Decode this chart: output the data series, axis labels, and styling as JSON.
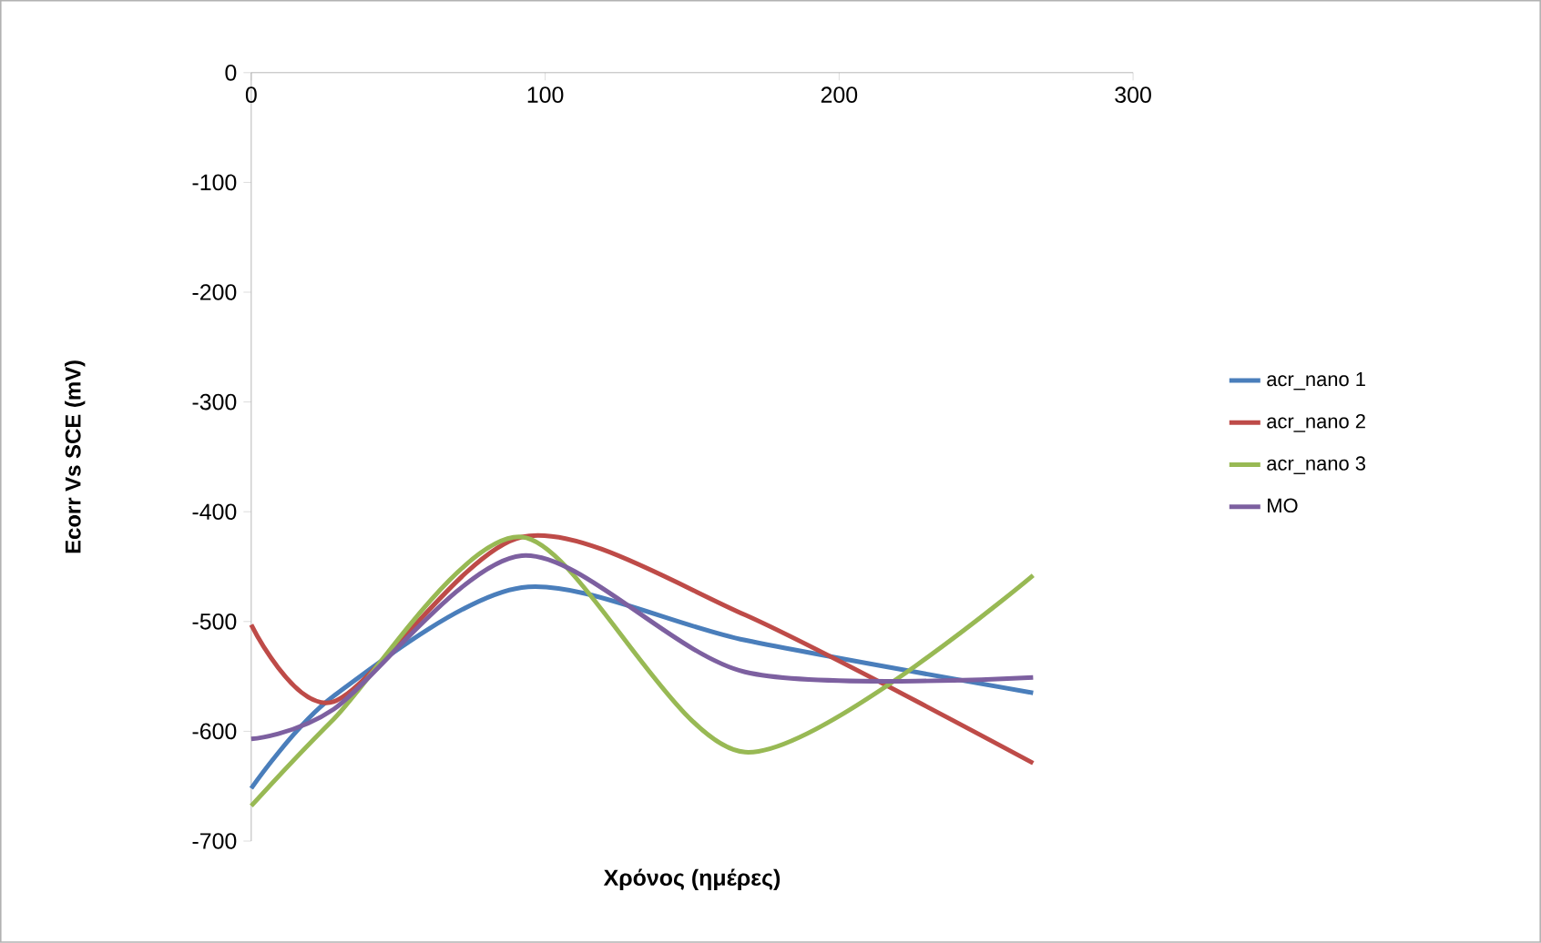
{
  "chart_data": {
    "type": "line",
    "xlabel": "Χρόνος (ημέρες)",
    "ylabel": "Ecorr Vs SCE (mV)",
    "xlim": [
      0,
      300
    ],
    "xticks": [
      0,
      100,
      200,
      300
    ],
    "ylim": [
      -700,
      0
    ],
    "yticks": [
      0,
      -100,
      -200,
      -300,
      -400,
      -500,
      -600,
      -700
    ],
    "grid": false,
    "legend": "right",
    "line_style": "solid",
    "marker": "none",
    "series": [
      {
        "name": "acr_nano 1",
        "color": "#4a7ebb",
        "x": [
          0,
          28,
          92,
          168,
          266
        ],
        "values": [
          -652,
          -568,
          -469,
          -517,
          -565
        ]
      },
      {
        "name": "acr_nano 2",
        "color": "#be4b48",
        "x": [
          0,
          28,
          92,
          168,
          266
        ],
        "values": [
          -503,
          -573,
          -423,
          -494,
          -629
        ]
      },
      {
        "name": "acr_nano 3",
        "color": "#98b954",
        "x": [
          0,
          28,
          92,
          168,
          266
        ],
        "values": [
          -668,
          -589,
          -423,
          -619,
          -458
        ]
      },
      {
        "name": "MO",
        "color": "#7d60a0",
        "x": [
          0,
          28,
          92,
          168,
          266
        ],
        "values": [
          -607,
          -580,
          -440,
          -546,
          -551
        ]
      }
    ]
  }
}
